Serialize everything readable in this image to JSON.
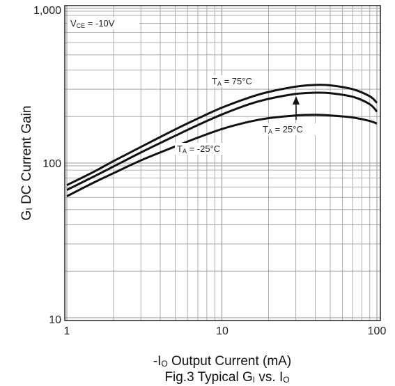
{
  "chart_data": {
    "type": "line",
    "x_scale": "log",
    "y_scale": "log",
    "xlim": [
      1,
      100
    ],
    "ylim": [
      10,
      1000
    ],
    "grid": true,
    "x_ticks": [
      "1",
      "10",
      "100"
    ],
    "y_ticks": [
      "10",
      "100",
      "1,000"
    ],
    "xlabel": {
      "prefix": "-I",
      "sub": "O",
      "rest": " Output Current (mA)"
    },
    "ylabel": {
      "prefix": "G",
      "sub": "I",
      "rest": " DC Current Gain"
    },
    "caption": {
      "text1": "Fig.3 Typical G",
      "sub1": "I",
      "text2": " vs. I",
      "sub2": "O"
    },
    "condition": {
      "pre": "V",
      "sub": "CE",
      "post": " = -10V"
    },
    "series": [
      {
        "name": {
          "pre": "T",
          "sub": "A",
          "post": " = 75°C"
        },
        "x": [
          1,
          1.5,
          2,
          3,
          5,
          7,
          10,
          15,
          20,
          30,
          40,
          50,
          70,
          90,
          100
        ],
        "y": [
          72,
          88,
          103,
          127,
          165,
          194,
          228,
          265,
          288,
          312,
          320,
          318,
          300,
          270,
          245
        ]
      },
      {
        "name": {
          "pre": "T",
          "sub": "A",
          "post": " = 25°C"
        },
        "x": [
          1,
          1.5,
          2,
          3,
          5,
          7,
          10,
          15,
          20,
          30,
          40,
          50,
          70,
          90,
          100
        ],
        "y": [
          67,
          82,
          95,
          117,
          150,
          176,
          206,
          240,
          260,
          280,
          285,
          283,
          268,
          240,
          215
        ]
      },
      {
        "name": {
          "pre": "T",
          "sub": "A",
          "post": " = -25°C"
        },
        "x": [
          1,
          1.5,
          2,
          3,
          5,
          7,
          10,
          15,
          20,
          30,
          40,
          50,
          70,
          90,
          100
        ],
        "y": [
          61,
          75,
          86,
          104,
          128,
          146,
          166,
          185,
          195,
          203,
          205,
          203,
          197,
          187,
          180
        ]
      }
    ]
  }
}
